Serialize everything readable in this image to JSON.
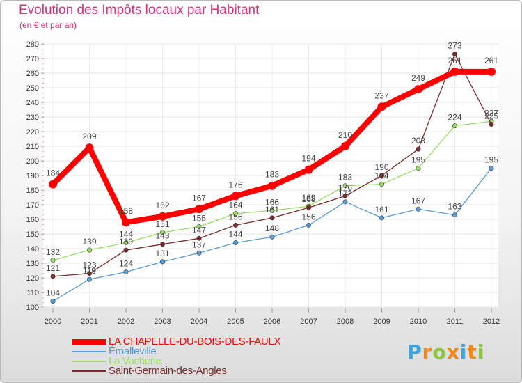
{
  "page": {
    "title": "Evolution des Impôts locaux par Habitant",
    "subtitle": "(en € et par an)"
  },
  "logo": {
    "letters": [
      "P",
      "r",
      "o",
      "x",
      "i",
      "t",
      "i"
    ],
    "colors": [
      "#3aa6dd",
      "#f08a1c",
      "#8dc63f",
      "#f08a1c",
      "#3aa6dd",
      "#f08a1c",
      "#8dc63f"
    ]
  },
  "chart_data": {
    "type": "line",
    "title": "Evolution des Impôts locaux par Habitant",
    "subtitle": "(en € et par an)",
    "xlabel": "",
    "ylabel": "",
    "ylim": [
      100,
      280
    ],
    "ytick_step": 10,
    "grid": true,
    "legend_position": "bottom-left",
    "categories": [
      "2000",
      "2001",
      "2002",
      "2003",
      "2004",
      "2005",
      "2006",
      "2007",
      "2008",
      "2009",
      "2010",
      "2011",
      "2012"
    ],
    "series": [
      {
        "name": "LA CHAPELLE-DU-BOIS-DES-FAULX",
        "color": "#ff0000",
        "values": [
          184,
          209,
          158,
          162,
          167,
          176,
          183,
          194,
          210,
          237,
          249,
          261,
          261
        ]
      },
      {
        "name": "Émalleville",
        "color": "#5b9bd5",
        "values": [
          104,
          119,
          124,
          131,
          137,
          144,
          148,
          156,
          172,
          161,
          167,
          163,
          195
        ]
      },
      {
        "name": "La Vacherie",
        "color": "#99dd66",
        "values": [
          132,
          139,
          144,
          151,
          155,
          164,
          166,
          169,
          183,
          184,
          195,
          224,
          227
        ]
      },
      {
        "name": "Saint-Germain-des-Angles",
        "color": "#7a2a2a",
        "values": [
          121,
          123,
          139,
          143,
          147,
          156,
          161,
          168,
          176,
          190,
          208,
          273,
          225
        ]
      }
    ]
  }
}
